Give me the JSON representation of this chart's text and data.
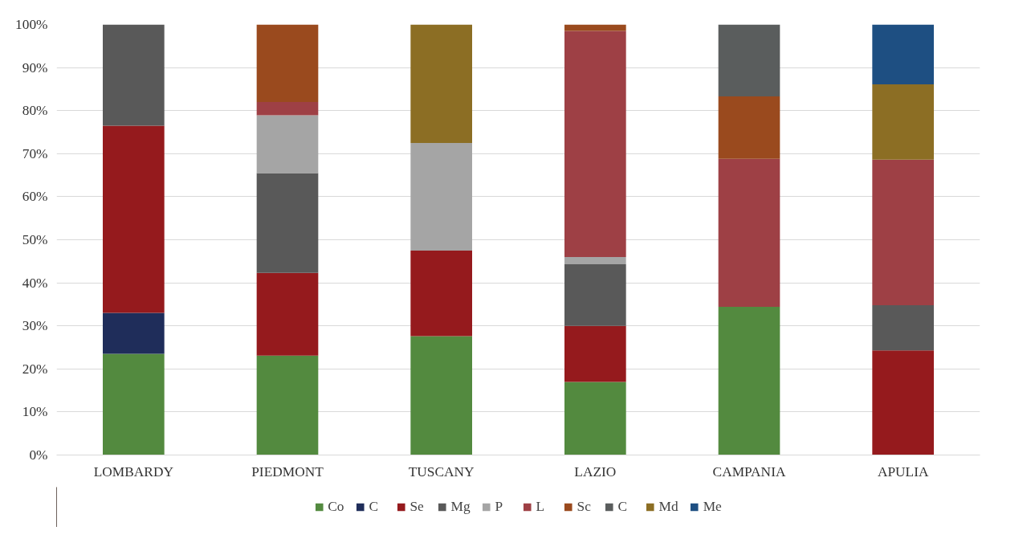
{
  "chart_data": {
    "type": "bar",
    "stacked": true,
    "categories": [
      "LOMBARDY",
      "PIEDMONT",
      "TUSCANY",
      "LAZIO",
      "CAMPANIA",
      "APULIA"
    ],
    "series": [
      {
        "name": "Co",
        "color": "#538a3f",
        "values": [
          23.5,
          23.1,
          27.6,
          17.0,
          34.4,
          null
        ]
      },
      {
        "name": "C",
        "color": "#1f2d5a",
        "values": [
          9.5,
          null,
          null,
          null,
          null,
          null
        ]
      },
      {
        "name": "Se",
        "color": "#951a1d",
        "values": [
          43.5,
          19.2,
          19.9,
          13.0,
          null,
          24.3
        ]
      },
      {
        "name": "Mg",
        "color": "#595959",
        "values": [
          23.5,
          23.2,
          null,
          14.3,
          null,
          10.5
        ]
      },
      {
        "name": "P",
        "color": "#a5a5a5",
        "values": [
          null,
          13.4,
          25.0,
          1.7,
          null,
          null
        ]
      },
      {
        "name": "L",
        "color": "#9e4045",
        "values": [
          null,
          3.1,
          null,
          52.5,
          34.4,
          33.8
        ]
      },
      {
        "name": "Sc",
        "color": "#9a4a1e",
        "values": [
          null,
          18.0,
          null,
          1.5,
          14.5,
          null
        ]
      },
      {
        "name": "C",
        "color": "#5a5d5d",
        "values": [
          null,
          null,
          null,
          null,
          16.7,
          null
        ]
      },
      {
        "name": "Md",
        "color": "#8c6e24",
        "values": [
          null,
          null,
          27.5,
          null,
          null,
          17.5
        ]
      },
      {
        "name": "Me",
        "color": "#1e4f82",
        "values": [
          null,
          null,
          null,
          null,
          null,
          13.9
        ]
      }
    ],
    "ylim": [
      0,
      100
    ],
    "yticks": [
      {
        "value": 0,
        "label": "0%"
      },
      {
        "value": 10,
        "label": "10%"
      },
      {
        "value": 20,
        "label": "20%"
      },
      {
        "value": 30,
        "label": "30%"
      },
      {
        "value": 40,
        "label": "40%"
      },
      {
        "value": 50,
        "label": "50%"
      },
      {
        "value": 60,
        "label": "60%"
      },
      {
        "value": 70,
        "label": "70%"
      },
      {
        "value": 80,
        "label": "80%"
      },
      {
        "value": 90,
        "label": "90%"
      },
      {
        "value": 100,
        "label": "100%"
      }
    ],
    "grid": "y",
    "legend": "bottom"
  }
}
